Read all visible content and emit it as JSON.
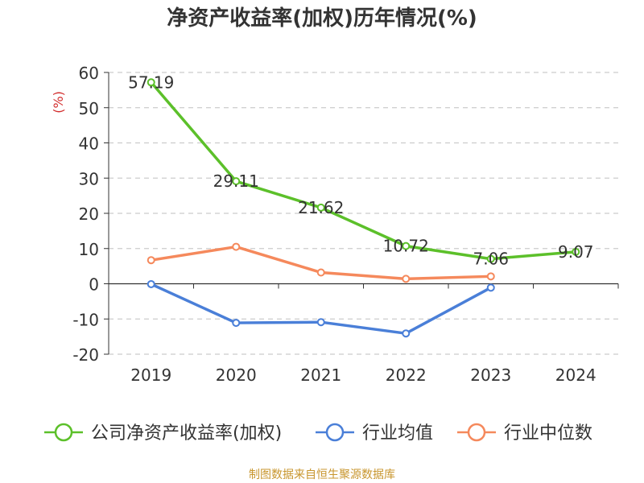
{
  "title": "净资产收益率(加权)历年情况(%)",
  "source": "制图数据来自恒生聚源数据库",
  "chart_data": {
    "type": "line",
    "title": "净资产收益率(加权)历年情况(%)",
    "ylabel": "(%)",
    "xlabel": "",
    "categories": [
      "2019",
      "2020",
      "2021",
      "2022",
      "2023",
      "2024"
    ],
    "ylim": [
      -20,
      60
    ],
    "yticks": [
      60,
      50,
      40,
      30,
      20,
      10,
      0,
      -10,
      -20
    ],
    "grid": true,
    "legend_position": "bottom",
    "series": [
      {
        "name": "公司净资产收益率(加权)",
        "color": "#5cc02a",
        "values": [
          57.19,
          29.11,
          21.62,
          10.72,
          7.06,
          9.07
        ],
        "labels": [
          "57.19",
          "29.11",
          "21.62",
          "10.72",
          "7.06",
          "9.07"
        ]
      },
      {
        "name": "行业均值",
        "color": "#4a7fd8",
        "values": [
          -0.1,
          -11.1,
          -10.9,
          -14.1,
          -1.1,
          null
        ]
      },
      {
        "name": "行业中位数",
        "color": "#f5895c",
        "values": [
          6.7,
          10.5,
          3.2,
          1.4,
          2.1,
          null
        ]
      }
    ]
  }
}
